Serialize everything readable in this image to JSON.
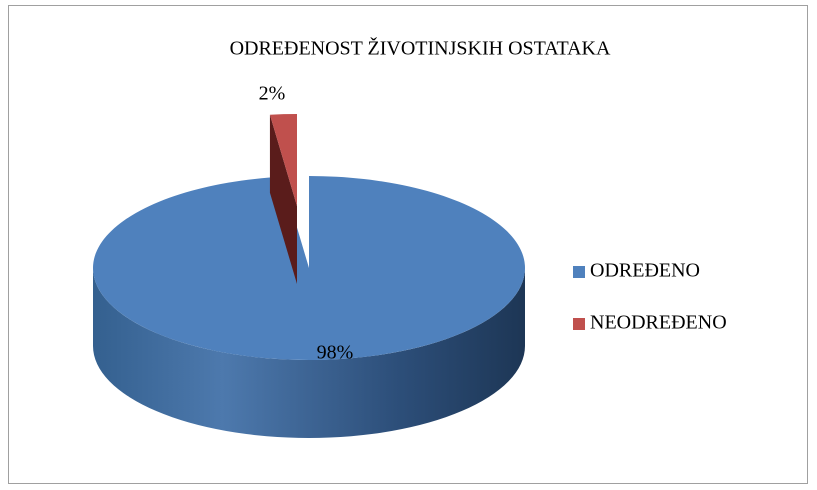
{
  "chart_data": {
    "type": "pie3d",
    "title": "ODREĐENOST ŽIVOTINJSKIH OSTATAKA",
    "categories": [
      "ODREĐENO",
      "NEODREĐENO"
    ],
    "values": [
      98,
      2
    ],
    "value_labels": [
      "98%",
      "2%"
    ],
    "colors": [
      "#4f81bd",
      "#c0504d"
    ],
    "legend": "right"
  }
}
